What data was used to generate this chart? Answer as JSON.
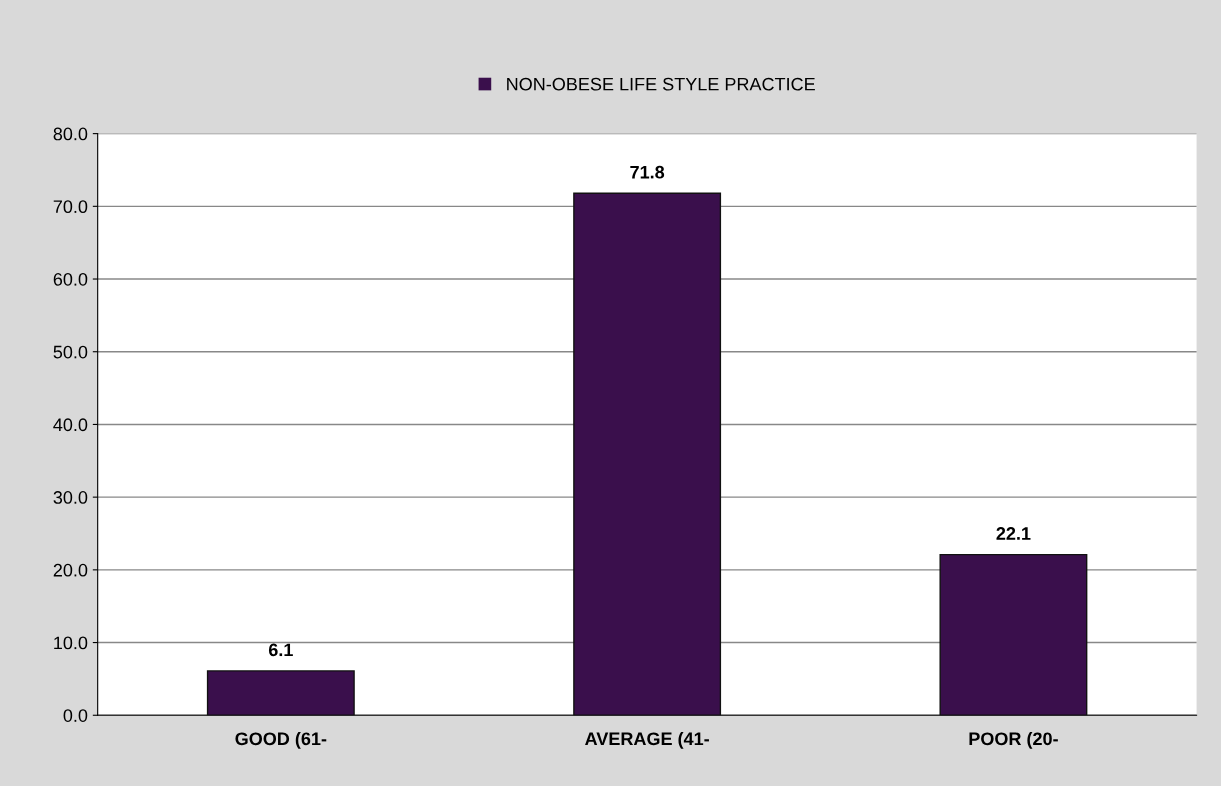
{
  "chart_data": {
    "type": "bar",
    "categories": [
      "GOOD (61-",
      "AVERAGE (41-",
      "POOR (20-"
    ],
    "series": [
      {
        "name": "NON-OBESE LIFE STYLE PRACTICE",
        "color": "#3a0f4c",
        "values": [
          6.1,
          71.8,
          22.1
        ]
      }
    ],
    "ylim": [
      0,
      80
    ],
    "yticks": [
      {
        "value": 0,
        "label": "0.0"
      },
      {
        "value": 10,
        "label": "10.0"
      },
      {
        "value": 20,
        "label": "20.0"
      },
      {
        "value": 30,
        "label": "30.0"
      },
      {
        "value": 40,
        "label": "40.0"
      },
      {
        "value": 50,
        "label": "50.0"
      },
      {
        "value": 60,
        "label": "60.0"
      },
      {
        "value": 70,
        "label": "70.0"
      },
      {
        "value": 80,
        "label": "80.0"
      }
    ],
    "grid": "y",
    "legend": "top",
    "data_labels": true
  }
}
